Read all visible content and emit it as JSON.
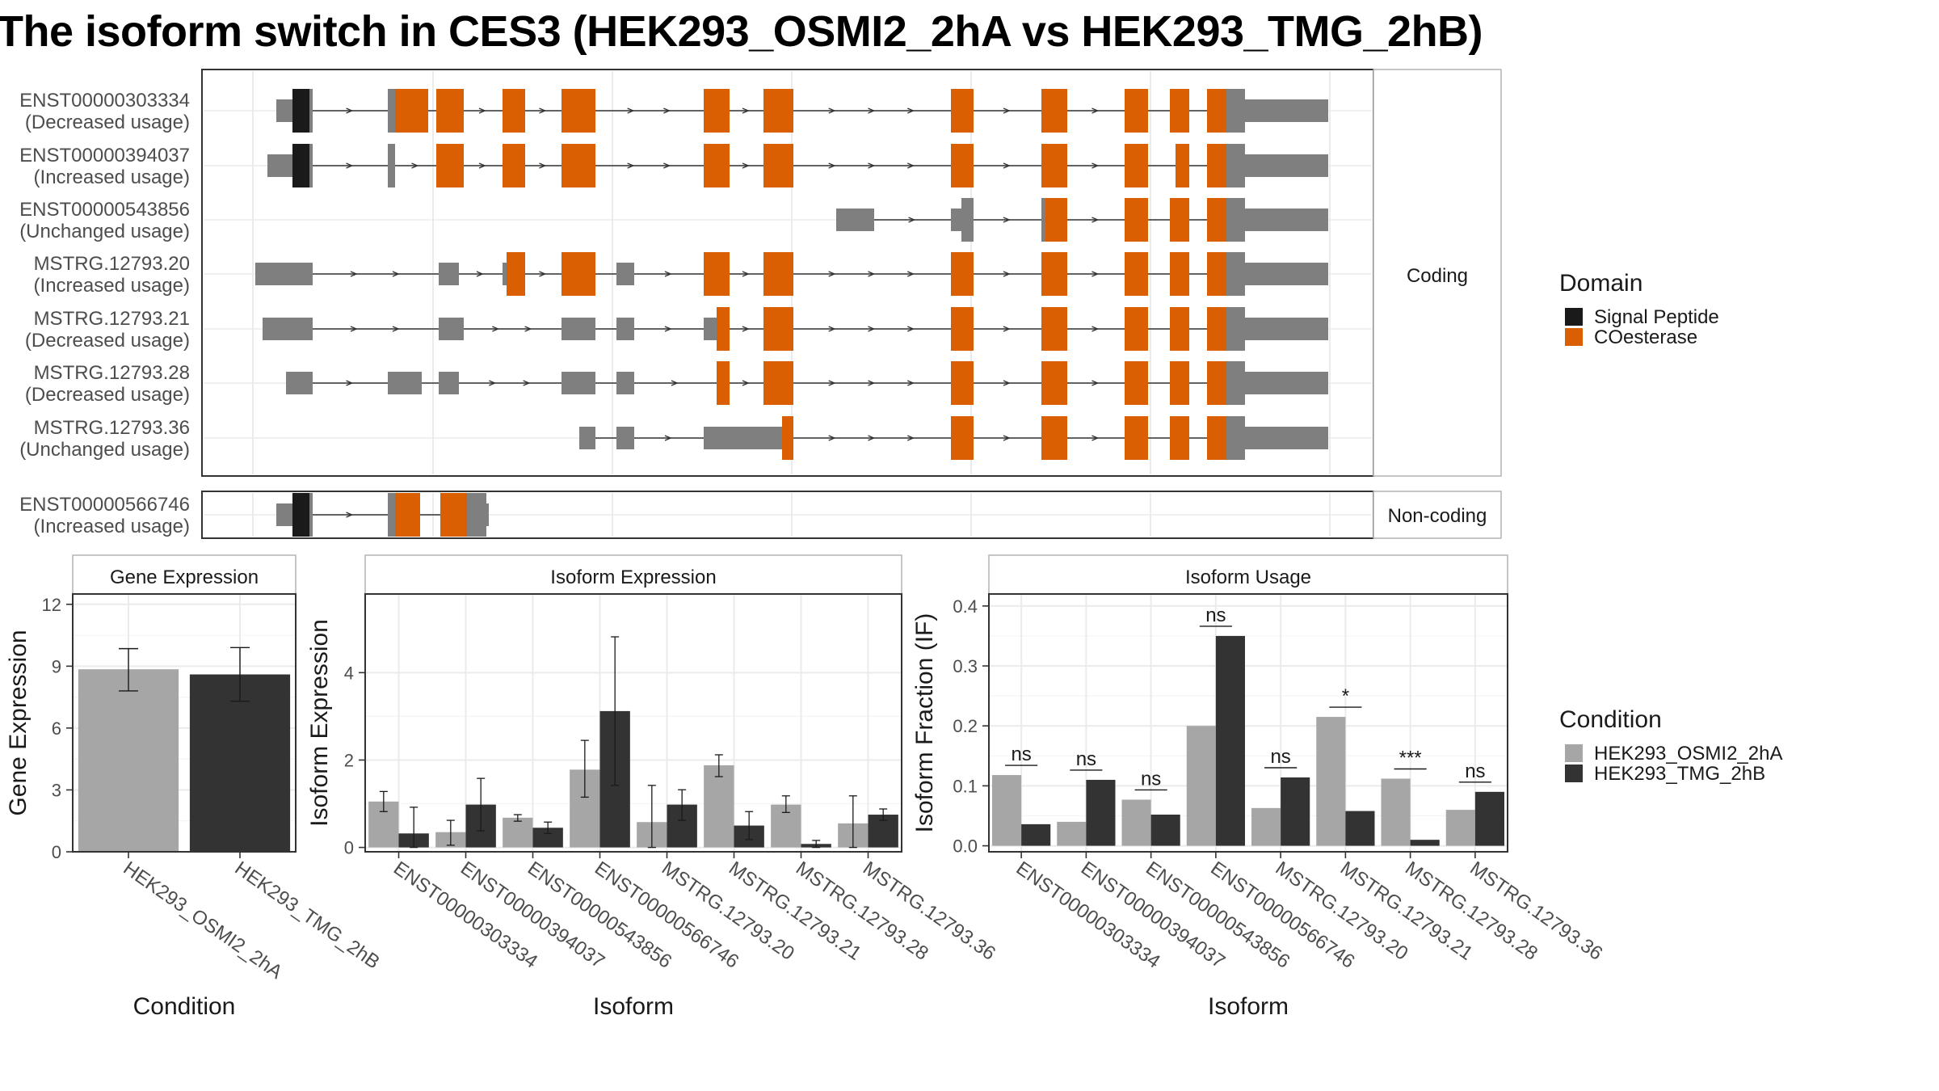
{
  "title": "The isoform switch in CES3 (HEK293_OSMI2_2hA vs HEK293_TMG_2hB)",
  "colors": {
    "signal_peptide": "#1a1a1a",
    "coesterase": "#d95f02",
    "non_domain_exon": "#7f7f7f",
    "condition_a": "#a6a6a6",
    "condition_b": "#333333"
  },
  "domain_legend": {
    "title": "Domain",
    "items": [
      {
        "label": "Signal Peptide",
        "color": "#1a1a1a"
      },
      {
        "label": "COesterase",
        "color": "#d95f02"
      }
    ]
  },
  "condition_legend": {
    "title": "Condition",
    "items": [
      {
        "label": "HEK293_OSMI2_2hA",
        "color": "#a6a6a6"
      },
      {
        "label": "HEK293_TMG_2hB",
        "color": "#333333"
      }
    ]
  },
  "structure": {
    "coding_label": "Coding",
    "noncoding_label": "Non-coding",
    "transcripts": [
      {
        "id": "ENST00000303334",
        "usage": "(Decreased usage)",
        "group": "coding"
      },
      {
        "id": "ENST00000394037",
        "usage": "(Increased usage)",
        "group": "coding"
      },
      {
        "id": "ENST00000543856",
        "usage": "(Unchanged usage)",
        "group": "coding"
      },
      {
        "id": "MSTRG.12793.20",
        "usage": "(Increased usage)",
        "group": "coding"
      },
      {
        "id": "MSTRG.12793.21",
        "usage": "(Decreased usage)",
        "group": "coding"
      },
      {
        "id": "MSTRG.12793.28",
        "usage": "(Decreased usage)",
        "group": "coding"
      },
      {
        "id": "MSTRG.12793.36",
        "usage": "(Unchanged usage)",
        "group": "coding"
      },
      {
        "id": "ENST00000566746",
        "usage": "(Increased usage)",
        "group": "noncoding"
      }
    ]
  },
  "chart_data": [
    {
      "type": "bar",
      "title": "Gene Expression",
      "xlabel": "Condition",
      "ylabel": "Gene Expression",
      "ylim": [
        0,
        12.5
      ],
      "yticks": [
        0,
        3,
        6,
        9,
        12
      ],
      "categories": [
        "HEK293_OSMI2_2hA",
        "HEK293_TMG_2hB"
      ],
      "values": [
        8.85,
        8.6
      ],
      "errors": [
        [
          7.8,
          9.85
        ],
        [
          7.3,
          9.9
        ]
      ]
    },
    {
      "type": "bar",
      "title": "Isoform Expression",
      "xlabel": "Isoform",
      "ylabel": "Isoform Expression",
      "ylim": [
        -0.1,
        5.8
      ],
      "yticks": [
        0,
        2,
        4
      ],
      "categories": [
        "ENST00000303334",
        "ENST00000394037",
        "ENST00000543856",
        "ENST00000566746",
        "MSTRG.12793.20",
        "MSTRG.12793.21",
        "MSTRG.12793.28",
        "MSTRG.12793.36"
      ],
      "series": [
        {
          "name": "HEK293_OSMI2_2hA",
          "values": [
            1.05,
            0.35,
            0.68,
            1.78,
            0.58,
            1.88,
            0.98,
            0.55
          ],
          "errors": [
            [
              0.82,
              1.28
            ],
            [
              0.05,
              0.62
            ],
            [
              0.6,
              0.75
            ],
            [
              1.15,
              2.45
            ],
            [
              0.0,
              1.42
            ],
            [
              1.62,
              2.12
            ],
            [
              0.8,
              1.18
            ],
            [
              0.0,
              1.18
            ]
          ]
        },
        {
          "name": "HEK293_TMG_2hB",
          "values": [
            0.32,
            0.98,
            0.45,
            3.12,
            0.98,
            0.5,
            0.08,
            0.75
          ],
          "errors": [
            [
              0.0,
              0.92
            ],
            [
              0.38,
              1.58
            ],
            [
              0.32,
              0.58
            ],
            [
              1.42,
              4.82
            ],
            [
              0.62,
              1.32
            ],
            [
              0.18,
              0.82
            ],
            [
              0.0,
              0.16
            ],
            [
              0.62,
              0.88
            ]
          ]
        }
      ]
    },
    {
      "type": "bar",
      "title": "Isoform Usage",
      "xlabel": "Isoform",
      "ylabel": "Isoform Fraction (IF)",
      "ylim": [
        -0.01,
        0.42
      ],
      "yticks": [
        0.0,
        0.1,
        0.2,
        0.3,
        0.4
      ],
      "ytick_labels": [
        "0.0",
        "0.1",
        "0.2",
        "0.3",
        "0.4"
      ],
      "categories": [
        "ENST00000303334",
        "ENST00000394037",
        "ENST00000543856",
        "ENST00000566746",
        "MSTRG.12793.20",
        "MSTRG.12793.21",
        "MSTRG.12793.28",
        "MSTRG.12793.36"
      ],
      "series": [
        {
          "name": "HEK293_OSMI2_2hA",
          "values": [
            0.118,
            0.04,
            0.077,
            0.2,
            0.063,
            0.215,
            0.112,
            0.06
          ]
        },
        {
          "name": "HEK293_TMG_2hB",
          "values": [
            0.036,
            0.11,
            0.052,
            0.35,
            0.114,
            0.058,
            0.01,
            0.09
          ]
        }
      ],
      "significance": [
        "ns",
        "ns",
        "ns",
        "ns",
        "ns",
        "*",
        "***",
        "ns"
      ]
    }
  ]
}
